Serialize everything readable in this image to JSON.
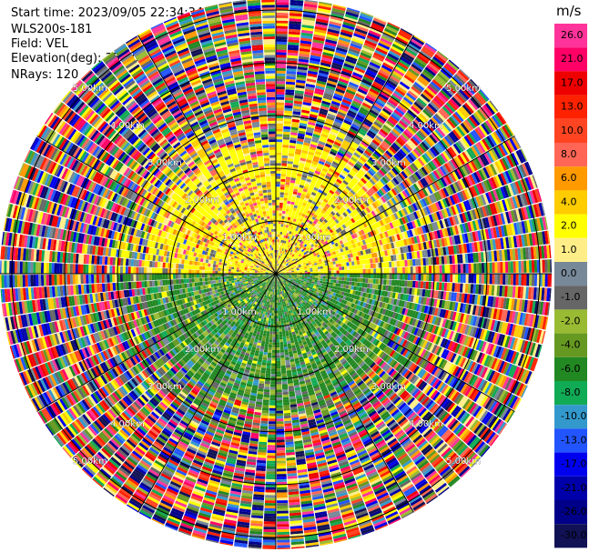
{
  "header": {
    "start_time": "Start time: 2023/09/05 22:34:34",
    "instrument": "WLS200s-181",
    "field": "Field: VEL",
    "elevation": "Elevation(deg): 35.30",
    "nrays": "NRays: 120"
  },
  "colorbar": {
    "unit": "m/s",
    "ticks": [
      "26.0",
      "21.0",
      "17.0",
      "13.0",
      "10.0",
      "8.0",
      "6.0",
      "4.0",
      "2.0",
      "1.0",
      "0.0",
      "-1.0",
      "-2.0",
      "-4.0",
      "-6.0",
      "-8.0",
      "-10.0",
      "-13.0",
      "-17.0",
      "-21.0",
      "-26.0",
      "-30.0"
    ],
    "colors": [
      "#ff3399",
      "#ff0066",
      "#ee0000",
      "#ff2200",
      "#ff4422",
      "#ff6655",
      "#ff9900",
      "#ffcc00",
      "#ffff00",
      "#ffee88",
      "#778899",
      "#666666",
      "#99bb33",
      "#669922",
      "#228822",
      "#11aa55",
      "#3399cc",
      "#2255ff",
      "#0000ee",
      "#0000aa",
      "#000088",
      "#111155"
    ]
  },
  "chart_data": {
    "type": "heatmap",
    "projection": "polar PPI (plan position indicator)",
    "field": "VEL",
    "units": "m/s",
    "nrays": 120,
    "elevation_deg": 35.3,
    "range_rings_km": [
      1,
      2,
      3,
      4,
      5
    ],
    "ring_labels": [
      "1.00km",
      "2.00km",
      "3.00km",
      "4.00km",
      "5.00km"
    ],
    "radial_lines_every_deg": 30,
    "pattern_summary": {
      "north_half_near": "mostly positive velocities (yellow / orange, ~1 to 6 m/s) with grey patches",
      "south_half_near": "mostly negative velocities (green, ~-2 to -8 m/s) with grey patches",
      "beyond_about_2.5km": "noisy multicolour returns spanning full scale"
    },
    "vmin": -30.0,
    "vmax": 26.0
  }
}
